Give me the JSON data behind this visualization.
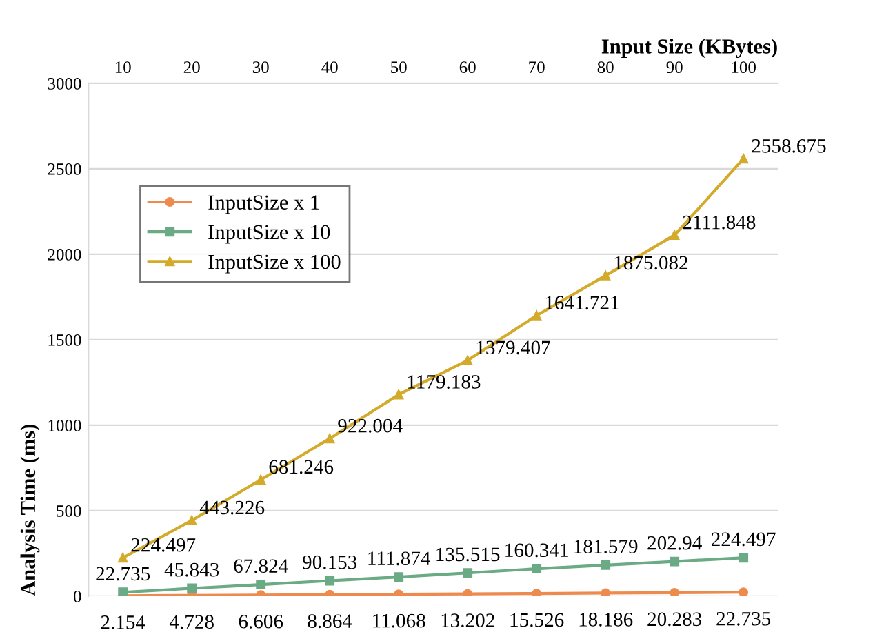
{
  "chart_data": {
    "type": "line",
    "xlabel": "Input Size (KBytes)",
    "ylabel": "Analysis Time (ms)",
    "x": [
      10,
      20,
      30,
      40,
      50,
      60,
      70,
      80,
      90,
      100
    ],
    "xlim": [
      5,
      105
    ],
    "xticks": [
      10,
      20,
      30,
      40,
      50,
      60,
      70,
      80,
      90,
      100
    ],
    "ylim": [
      0,
      3000
    ],
    "yticks": [
      0,
      500,
      1000,
      1500,
      2000,
      2500,
      3000
    ],
    "grid": "y",
    "legend": "top left",
    "data_labels": true,
    "series": [
      {
        "name": "InputSize x 1",
        "color": "#ed8b4f",
        "marker": "circle",
        "values": [
          2.154,
          4.728,
          6.606,
          8.864,
          11.068,
          13.202,
          15.526,
          18.186,
          20.283,
          22.735
        ]
      },
      {
        "name": "InputSize x 10",
        "color": "#6aaa84",
        "marker": "square",
        "values": [
          22.735,
          45.843,
          67.824,
          90.153,
          111.874,
          135.515,
          160.341,
          181.579,
          202.94,
          224.497
        ]
      },
      {
        "name": "InputSize x 100",
        "color": "#d4aa2a",
        "marker": "triangle",
        "values": [
          224.497,
          443.226,
          681.246,
          922.004,
          1179.183,
          1379.407,
          1641.721,
          1875.082,
          2111.848,
          2558.675
        ]
      }
    ]
  }
}
